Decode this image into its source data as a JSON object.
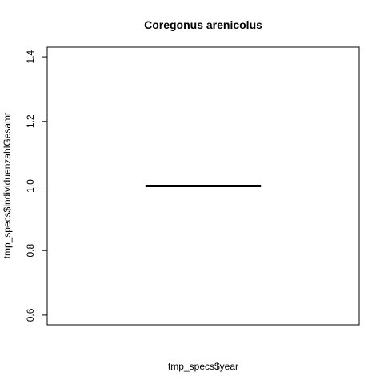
{
  "chart_data": {
    "type": "box",
    "title": "Coregonus arenicolus",
    "xlabel": "tmp_specs$year",
    "ylabel": "tmp_specs$individuenzahlGesamt",
    "ylim": [
      0.57,
      1.43
    ],
    "yticks": [
      0.6,
      0.8,
      1.0,
      1.2,
      1.4
    ],
    "ytick_labels": [
      "0.6",
      "0.8",
      "1.0",
      "1.2",
      "1.4"
    ],
    "boxes": [
      {
        "min": 1,
        "q1": 1,
        "median": 1,
        "q3": 1,
        "max": 1
      }
    ],
    "grid": false,
    "legend": "none"
  }
}
